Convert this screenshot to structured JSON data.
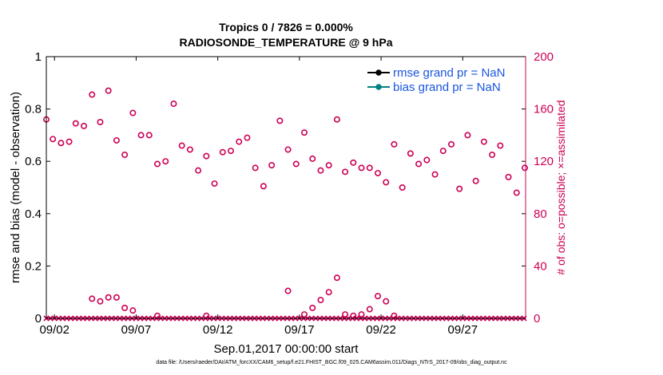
{
  "chart_data": {
    "type": "scatter",
    "title_line1": "Tropics 0 / 7826 = 0.000%",
    "title_line2": "RADIOSONDE_TEMPERATURE @ 9 hPa",
    "xlabel": "Sep.01,2017 00:00:00 start",
    "ylabel_left": "rmse and bias (model - observation)",
    "ylabel_right": "# of obs: o=possible; ×=assimilated",
    "xlim": [
      1.5,
      30.85
    ],
    "ylim_left": [
      0,
      1
    ],
    "ylim_right": [
      0,
      200
    ],
    "xticks": [
      2,
      7,
      12,
      17,
      22,
      27
    ],
    "xtick_labels": [
      "09/02",
      "09/07",
      "09/12",
      "09/17",
      "09/22",
      "09/27"
    ],
    "yticks_left": [
      0,
      0.2,
      0.4,
      0.6,
      0.8,
      1
    ],
    "ytick_labels_left": [
      "0",
      "0.2",
      "0.4",
      "0.6",
      "0.8",
      "1"
    ],
    "yticks_right": [
      0,
      40,
      80,
      120,
      160,
      200
    ],
    "ytick_labels_right": [
      "0",
      "40",
      "80",
      "120",
      "160",
      "200"
    ],
    "legend": {
      "placement": "top-right",
      "entries": [
        {
          "label": "rmse grand pr = NaN",
          "color": "#000000"
        },
        {
          "label": "bias grand pr = NaN",
          "color": "#008080"
        }
      ]
    },
    "series": [
      {
        "name": "possible obs (upper)",
        "axis": "right",
        "marker": "circle",
        "color": "#cc0055",
        "x": [
          1.5,
          1.9,
          2.4,
          2.9,
          3.3,
          3.8,
          4.3,
          4.8,
          5.3,
          5.8,
          6.3,
          6.8,
          7.3,
          7.8,
          8.3,
          8.8,
          9.3,
          9.8,
          10.3,
          10.8,
          11.3,
          11.8,
          12.3,
          12.8,
          13.3,
          13.8,
          14.3,
          14.8,
          15.3,
          15.8,
          16.3,
          16.8,
          17.3,
          17.8,
          18.3,
          18.8,
          19.3,
          19.8,
          20.3,
          20.8,
          21.3,
          21.8,
          22.3,
          22.8,
          23.3,
          23.8,
          24.3,
          24.8,
          25.3,
          25.8,
          26.3,
          26.8,
          27.3,
          27.8,
          28.3,
          28.8,
          29.3,
          29.8,
          30.3
        ],
        "y": [
          152,
          137,
          134,
          135,
          149,
          147,
          171,
          150,
          174,
          136,
          125,
          157,
          140,
          140,
          118,
          120,
          164,
          132,
          129,
          113,
          124,
          103,
          127,
          128,
          135,
          138,
          115,
          101,
          117,
          151,
          129,
          118,
          142,
          122,
          113,
          117,
          152,
          112,
          119,
          115,
          115,
          111,
          104,
          133,
          100,
          126,
          118,
          121,
          110,
          128,
          133,
          99,
          140,
          105,
          135,
          125,
          132,
          108,
          96
        ],
        "note": "additional trailing point at day 30.8, value 115"
      },
      {
        "name": "possible obs (lower)",
        "axis": "right",
        "marker": "circle",
        "color": "#cc0055",
        "x": [
          4.3,
          4.8,
          5.3,
          5.8,
          6.3,
          6.8,
          8.3,
          11.3,
          16.3,
          17.3,
          17.8,
          18.3,
          18.8,
          19.3,
          19.8,
          20.3,
          20.8,
          21.3,
          21.8,
          22.3,
          22.8
        ],
        "y": [
          15,
          13,
          16,
          16,
          8,
          6,
          2,
          2,
          21,
          3,
          8,
          14,
          20,
          31,
          3,
          2,
          3,
          7,
          17,
          13,
          2
        ]
      },
      {
        "name": "assimilated obs",
        "axis": "right",
        "marker": "x",
        "color": "#cc0055",
        "value": 0,
        "x_range": [
          1.5,
          30.85
        ],
        "step": 0.25
      }
    ]
  },
  "footer_note": "data file: /Users/raeder/DAI/ATM_forcXX/CAM6_setup/f.e21.FHIST_BGC.f09_025.CAM6assim.011/Diags_NTrS_2017-09/obs_diag_output.nc"
}
